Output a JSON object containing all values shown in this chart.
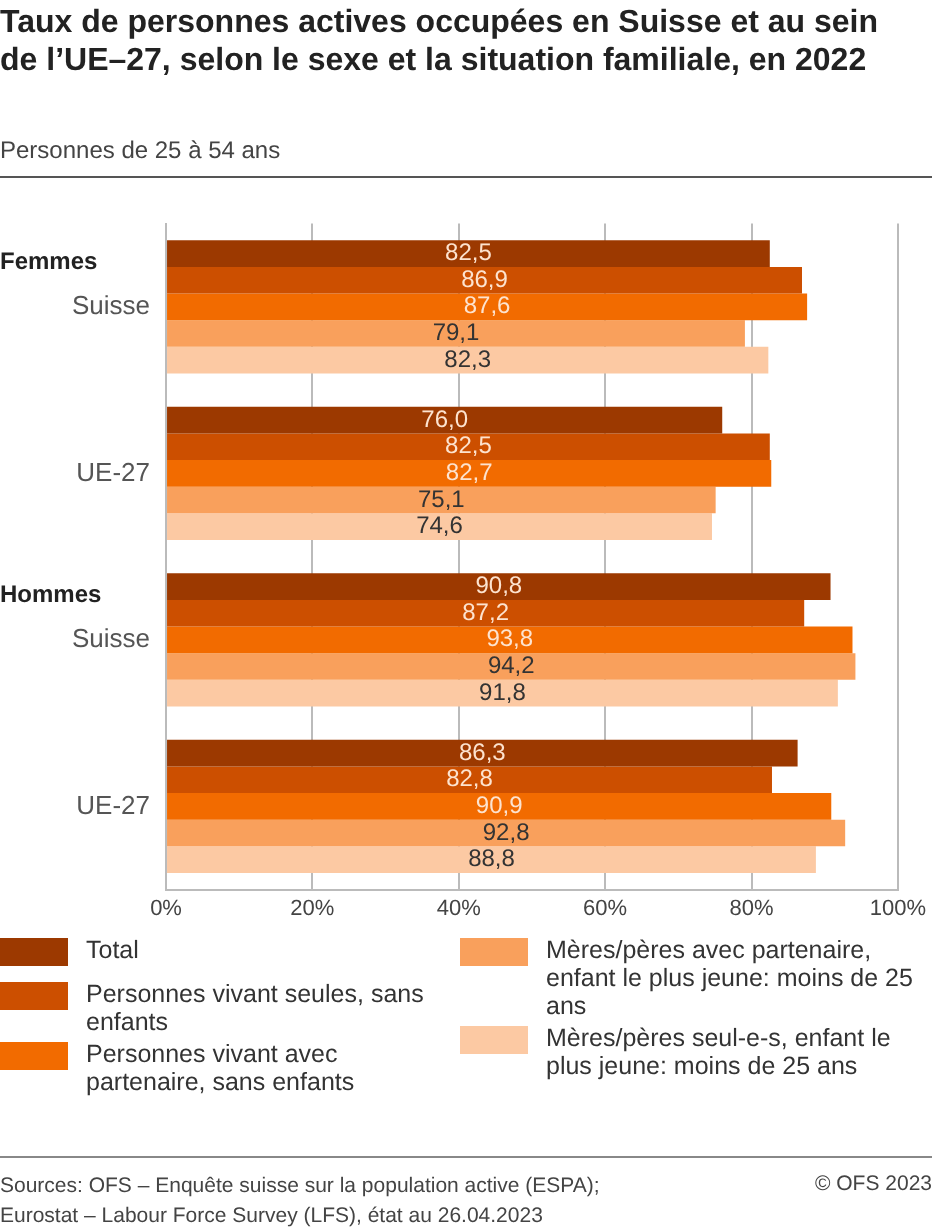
{
  "chart_data": {
    "type": "bar",
    "orientation": "horizontal",
    "title": "Taux de personnes actives occupées en Suisse et au sein de l’UE–27, selon le sexe et la situation familiale, en 2022",
    "subtitle": "Personnes de 25 à 54 ans",
    "categories": [
      "Suisse",
      "UE-27",
      "Suisse",
      "UE-27"
    ],
    "series": [
      {
        "name": "Total",
        "color": "#9c3900",
        "values": [
          82.5,
          76.0,
          90.8,
          86.3
        ]
      },
      {
        "name": "Personnes vivant seules, sans enfants",
        "color": "#cc4f00",
        "values": [
          86.9,
          82.5,
          87.2,
          82.8
        ]
      },
      {
        "name": "Personnes vivant avec partenaire, sans enfants",
        "color": "#f26b00",
        "values": [
          87.6,
          82.7,
          93.8,
          90.9
        ]
      },
      {
        "name": "Mères/pères avec partenaire, enfant le plus jeune: moins de 25 ans",
        "color": "#f9a05c",
        "values": [
          79.1,
          75.1,
          94.2,
          92.8
        ]
      },
      {
        "name": "Mères/pères seul-e-s, enfant le plus jeune: moins de 25 ans",
        "color": "#fcc9a3",
        "values": [
          82.3,
          74.6,
          91.8,
          88.8
        ]
      }
    ],
    "value_labels": [
      [
        "82,5",
        "76,0",
        "90,8",
        "86,3"
      ],
      [
        "86,9",
        "82,5",
        "87,2",
        "82,8"
      ],
      [
        "87,6",
        "82,7",
        "93,8",
        "90,9"
      ],
      [
        "79,1",
        "75,1",
        "94,2",
        "92,8"
      ],
      [
        "82,3",
        "74,6",
        "91,8",
        "88,8"
      ]
    ],
    "xlim": [
      0,
      100
    ],
    "xticks": [
      {
        "value": 0,
        "label": "0%"
      },
      {
        "value": 20,
        "label": "20%"
      },
      {
        "value": 40,
        "label": "40%"
      },
      {
        "value": 60,
        "label": "60%"
      },
      {
        "value": 80,
        "label": "80%"
      },
      {
        "value": 100,
        "label": "100%"
      }
    ],
    "grid": "x",
    "legend": "bottom",
    "annotations": [
      "Femmes",
      "Hommes",
      "Sources: OFS – Enquête suisse sur la population active (ESPA); Eurostat – Labour Force Survey (LFS), état au 26.04.2023",
      "© OFS 2023"
    ]
  }
}
